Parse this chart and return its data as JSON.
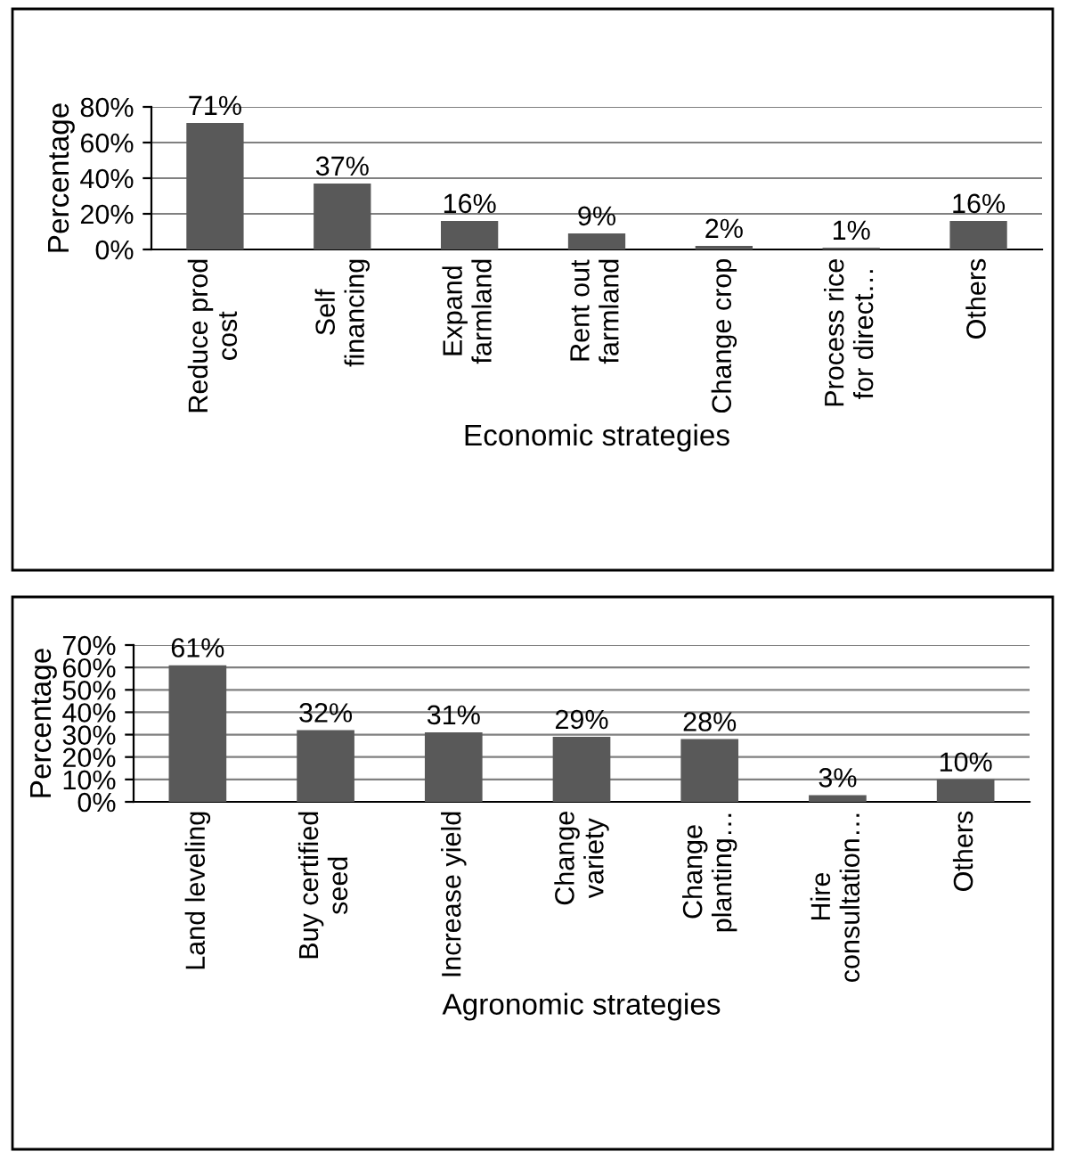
{
  "chart_data": [
    {
      "type": "bar",
      "xlabel": "Economic strategies",
      "ylabel": "Percentage",
      "categories": [
        "Reduce prod\ncost",
        "Self\nfinancing",
        "Expand\nfarmland",
        "Rent out\nfarmland",
        "Change crop",
        "Process rice\nfor direct…",
        "Others"
      ],
      "values": [
        71,
        37,
        16,
        9,
        2,
        1,
        16
      ],
      "value_labels": [
        "71%",
        "37%",
        "16%",
        "9%",
        "2%",
        "1%",
        "16%"
      ],
      "color": "#595959",
      "ylim": [
        0,
        80
      ],
      "yticks": [
        {
          "value": 0,
          "label": "0%"
        },
        {
          "value": 20,
          "label": "20%"
        },
        {
          "value": 40,
          "label": "40%"
        },
        {
          "value": 60,
          "label": "60%"
        },
        {
          "value": 80,
          "label": "80%"
        }
      ],
      "grid": "y",
      "legend": false
    },
    {
      "type": "bar",
      "xlabel": "Agronomic strategies",
      "ylabel": "Percentage",
      "categories": [
        "Land leveling",
        "Buy certified\nseed",
        "Increase yield",
        "Change\nvariety",
        "Change\nplanting…",
        "Hire\nconsultation…",
        "Others"
      ],
      "values": [
        61,
        32,
        31,
        29,
        28,
        3,
        10
      ],
      "value_labels": [
        "61%",
        "32%",
        "31%",
        "29%",
        "28%",
        "3%",
        "10%"
      ],
      "color": "#595959",
      "ylim": [
        0,
        70
      ],
      "yticks": [
        {
          "value": 0,
          "label": "0%"
        },
        {
          "value": 10,
          "label": "10%"
        },
        {
          "value": 20,
          "label": "20%"
        },
        {
          "value": 30,
          "label": "30%"
        },
        {
          "value": 40,
          "label": "40%"
        },
        {
          "value": 50,
          "label": "50%"
        },
        {
          "value": 60,
          "label": "60%"
        },
        {
          "value": 70,
          "label": "70%"
        }
      ],
      "grid": "y",
      "legend": false
    }
  ]
}
